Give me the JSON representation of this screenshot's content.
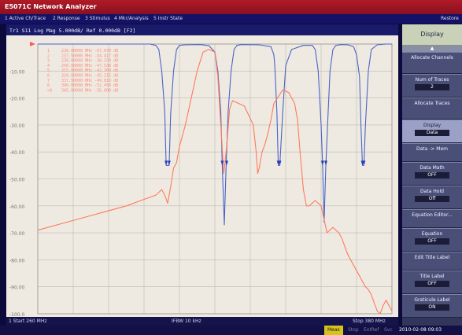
{
  "window": {
    "title": "E5071C Network Analyzer"
  },
  "menu": {
    "items": [
      "1 Active Ch/Trace",
      "2 Response",
      "3 Stimulus",
      "4 Mkr/Analysis",
      "5 Instr State"
    ],
    "right": "Restore"
  },
  "trace_header": {
    "trace1": "Tr1  S11  Log Mag  5.000dB/  Ref  0.000dB  [F2]"
  },
  "marker_table": {
    "rows": [
      {
        "id": "1",
        "freq": "236.00000 MHz",
        "val": "-67.070 dB"
      },
      {
        "id": "2",
        "freq": "237.50000 MHz",
        "val": "-44.417 dB"
      },
      {
        "id": "3",
        "freq": "238.00000 MHz",
        "val": "-38.150 dB"
      },
      {
        "id": "4",
        "freq": "260.00000 MHz",
        "val": "-47.530 dB"
      },
      {
        "id": "5",
        "freq": "315.00000 MHz",
        "val": "-42.300 dB"
      },
      {
        "id": "6",
        "freq": "320.00000 MHz",
        "val": "-45.215 dB"
      },
      {
        "id": "7",
        "freq": "337.50000 MHz",
        "val": "-49.810 dB"
      },
      {
        "id": "8",
        "freq": "340.00000 MHz",
        "val": "-52.450 dB"
      },
      {
        "id": ">8",
        "freq": "345.00000 MHz",
        "val": "-56.600 dB"
      }
    ]
  },
  "chart_data": {
    "type": "line",
    "title": "",
    "xlabel": "",
    "ylabel": "",
    "xlim": [
      260,
      380
    ],
    "ylim": [
      -100,
      0
    ],
    "y_ticks": [
      -10,
      -20,
      -30,
      -40,
      -50,
      -60,
      -70,
      -80,
      -90,
      -100
    ],
    "y_tick_labels": [
      "-10.00",
      "-20.00",
      "-30.00",
      "-40.00",
      "-50.00",
      "-60.00",
      "-70.00",
      "-80.00",
      "-90.00",
      "-100.0"
    ],
    "grid": true,
    "series": [
      {
        "name": "",
        "color": "#4a63c8",
        "x": [
          260,
          298,
          300,
          301,
          302,
          303,
          303.5,
          304.5,
          305,
          306,
          307,
          308,
          310,
          315,
          318,
          320,
          321,
          322,
          322.5,
          323.2,
          323.8,
          324.5,
          325.5,
          326.5,
          327.5,
          329,
          335,
          339,
          340,
          340.3,
          341,
          341.5,
          342,
          343,
          344,
          346,
          350,
          353,
          354,
          355,
          356,
          356.5,
          357,
          357.6,
          358.2,
          359,
          360,
          361,
          363,
          365,
          367,
          368,
          369,
          369.5,
          370,
          370.5,
          371,
          372,
          373,
          375,
          378,
          380
        ],
        "y": [
          0,
          0,
          -0.5,
          -2,
          -10,
          -25,
          -45,
          -45,
          -26,
          -10,
          -2,
          -0.5,
          -0.3,
          -0.2,
          -0.6,
          -3,
          -10,
          -25,
          -45,
          -67,
          -45,
          -25,
          -10,
          -2,
          -0.5,
          -0.2,
          -0.3,
          -1,
          -4,
          -8,
          -25,
          -45,
          -45,
          -25,
          -8,
          -2,
          -0.5,
          -0.5,
          -2,
          -10,
          -30,
          -45,
          -66,
          -45,
          -30,
          -10,
          -2,
          -0.5,
          -0.2,
          -0.3,
          -1,
          -4,
          -12,
          -30,
          -45,
          -45,
          -30,
          -10,
          -2,
          -0.3,
          0,
          0
        ]
      },
      {
        "name": "",
        "color": "#ff7a5c",
        "x": [
          260,
          270,
          280,
          290,
          295,
          300,
          302,
          303,
          304,
          305,
          306,
          307,
          308,
          310,
          312,
          314,
          316,
          318,
          320,
          321,
          322,
          323,
          324,
          325,
          326,
          328,
          330,
          333,
          334,
          334.5,
          335,
          336,
          337,
          338,
          339,
          340,
          343,
          345,
          347,
          348,
          349,
          350,
          351,
          352,
          354,
          356,
          358,
          360,
          362,
          363,
          364,
          365,
          366,
          367,
          368,
          369,
          370,
          371,
          372,
          373,
          374,
          375,
          376,
          377,
          378,
          379,
          380
        ],
        "y": [
          -69,
          -66,
          -63,
          -60,
          -58,
          -56,
          -54,
          -56,
          -59,
          -53,
          -46,
          -44,
          -38,
          -30,
          -20,
          -10,
          -3,
          -2,
          -3,
          -12,
          -30,
          -48,
          -38,
          -24,
          -21,
          -22,
          -23,
          -30,
          -40,
          -48,
          -46,
          -40,
          -37,
          -33,
          -28,
          -22,
          -17,
          -18,
          -22,
          -28,
          -42,
          -54,
          -60,
          -60,
          -58,
          -60,
          -70,
          -68,
          -70,
          -72,
          -75,
          -78,
          -80,
          -82,
          -84,
          -86,
          -88,
          -90,
          -91,
          -93,
          -96,
          -99,
          -100,
          -97,
          -95,
          -97,
          -99
        ]
      }
    ]
  },
  "sidebar": {
    "header": "Display",
    "up_arrow": "▲",
    "buttons": [
      {
        "label": "Allocate Channels",
        "value": ""
      },
      {
        "label": "Num of Traces",
        "value": "2"
      },
      {
        "label": "Allocate Traces",
        "value": ""
      },
      {
        "label": "Display",
        "value": "Data"
      },
      {
        "label": "Data -> Mem",
        "value": ""
      },
      {
        "label": "Data Math",
        "value": "OFF"
      },
      {
        "label": "Data Hold",
        "value": "Off"
      },
      {
        "label": "Equation Editor...",
        "value": ""
      },
      {
        "label": "Equation",
        "value": "OFF"
      },
      {
        "label": "Edit Title Label",
        "value": ""
      },
      {
        "label": "Title Label",
        "value": "OFF"
      },
      {
        "label": "Graticule Label",
        "value": "ON"
      }
    ]
  },
  "status": {
    "start": "1  Start 260 MHz",
    "ifbw": "IFBW 10 kHz",
    "stop": "Stop 380 MHz"
  },
  "bottom": {
    "meas": "Meas",
    "stop": "Stop",
    "extref": "ExtRef",
    "svc": "Svc",
    "datetime": "2010-02-08 09:03"
  }
}
